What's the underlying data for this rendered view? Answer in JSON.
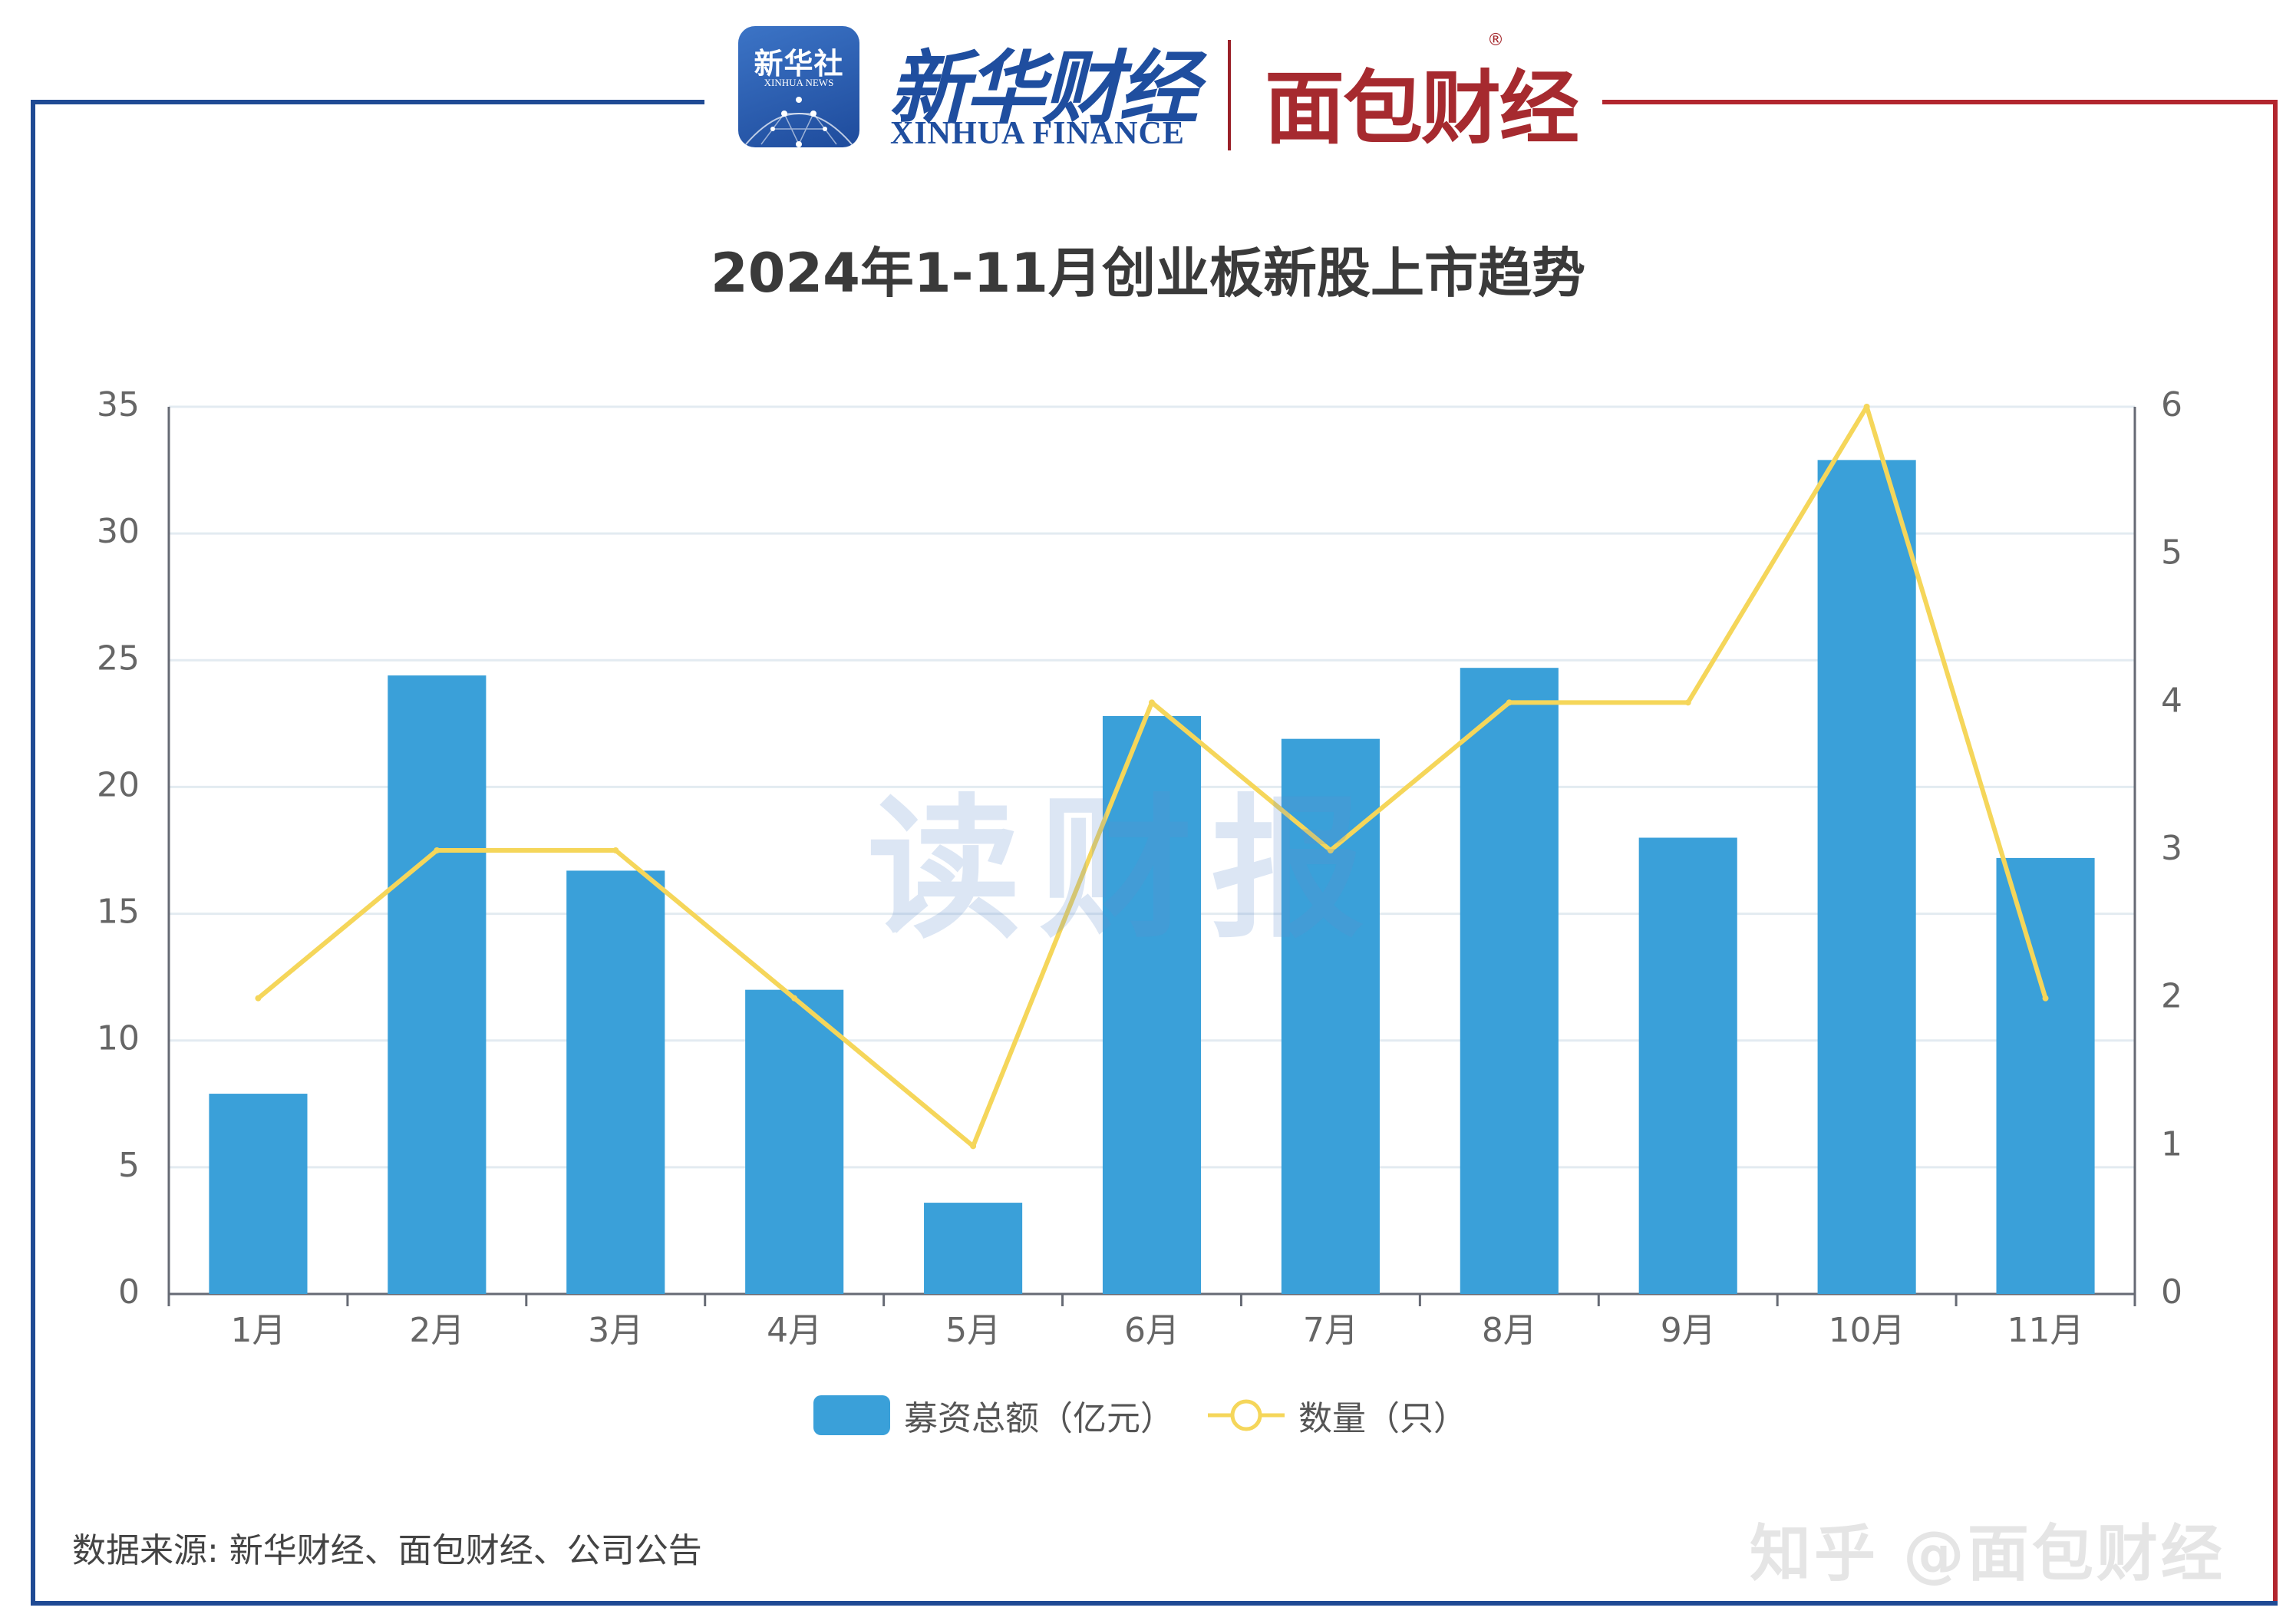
{
  "header": {
    "xinhua_badge_name": "新华社",
    "xinhua_badge_en": "XINHUA NEWS",
    "xinhua_finance_name": "新华财经",
    "xinhua_finance_en": "XINHUA FINANCE",
    "mianbao_name": "面包财经",
    "mianbao_reg": "®"
  },
  "watermark": "读财报",
  "source": "数据来源: 新华财经、面包财经、公司公告",
  "zhihu_watermark": "知乎 @面包财经",
  "colors": {
    "frame_blue": "#1f4a94",
    "frame_red": "#b2262e",
    "bar": "#3aa0d9",
    "line": "#f5d65a",
    "grid": "#e3ebf1",
    "axis": "#666a74"
  },
  "chart_data": {
    "type": "bar",
    "title": "2024年1-11月创业板新股上市趋势",
    "categories": [
      "1月",
      "2月",
      "3月",
      "4月",
      "5月",
      "6月",
      "7月",
      "8月",
      "9月",
      "10月",
      "11月"
    ],
    "series": [
      {
        "name": "募资总额（亿元）",
        "type": "bar",
        "axis": "left",
        "color": "#3aa0d9",
        "values": [
          7.9,
          24.4,
          16.7,
          12.0,
          3.6,
          22.8,
          21.9,
          24.7,
          18.0,
          32.9,
          17.2
        ]
      },
      {
        "name": "数量（只）",
        "type": "line",
        "axis": "right",
        "color": "#f5d65a",
        "values": [
          2,
          3,
          3,
          2,
          1,
          4,
          3,
          4,
          4,
          6,
          2
        ]
      }
    ],
    "ylim": [
      0,
      35
    ],
    "yticks": [
      "0",
      "5",
      "10",
      "15",
      "20",
      "25",
      "30",
      "35"
    ],
    "y2lim": [
      0,
      6
    ],
    "y2ticks": [
      "0",
      "1",
      "2",
      "3",
      "4",
      "5",
      "6"
    ],
    "grid": true,
    "legend": "bottom-center"
  }
}
